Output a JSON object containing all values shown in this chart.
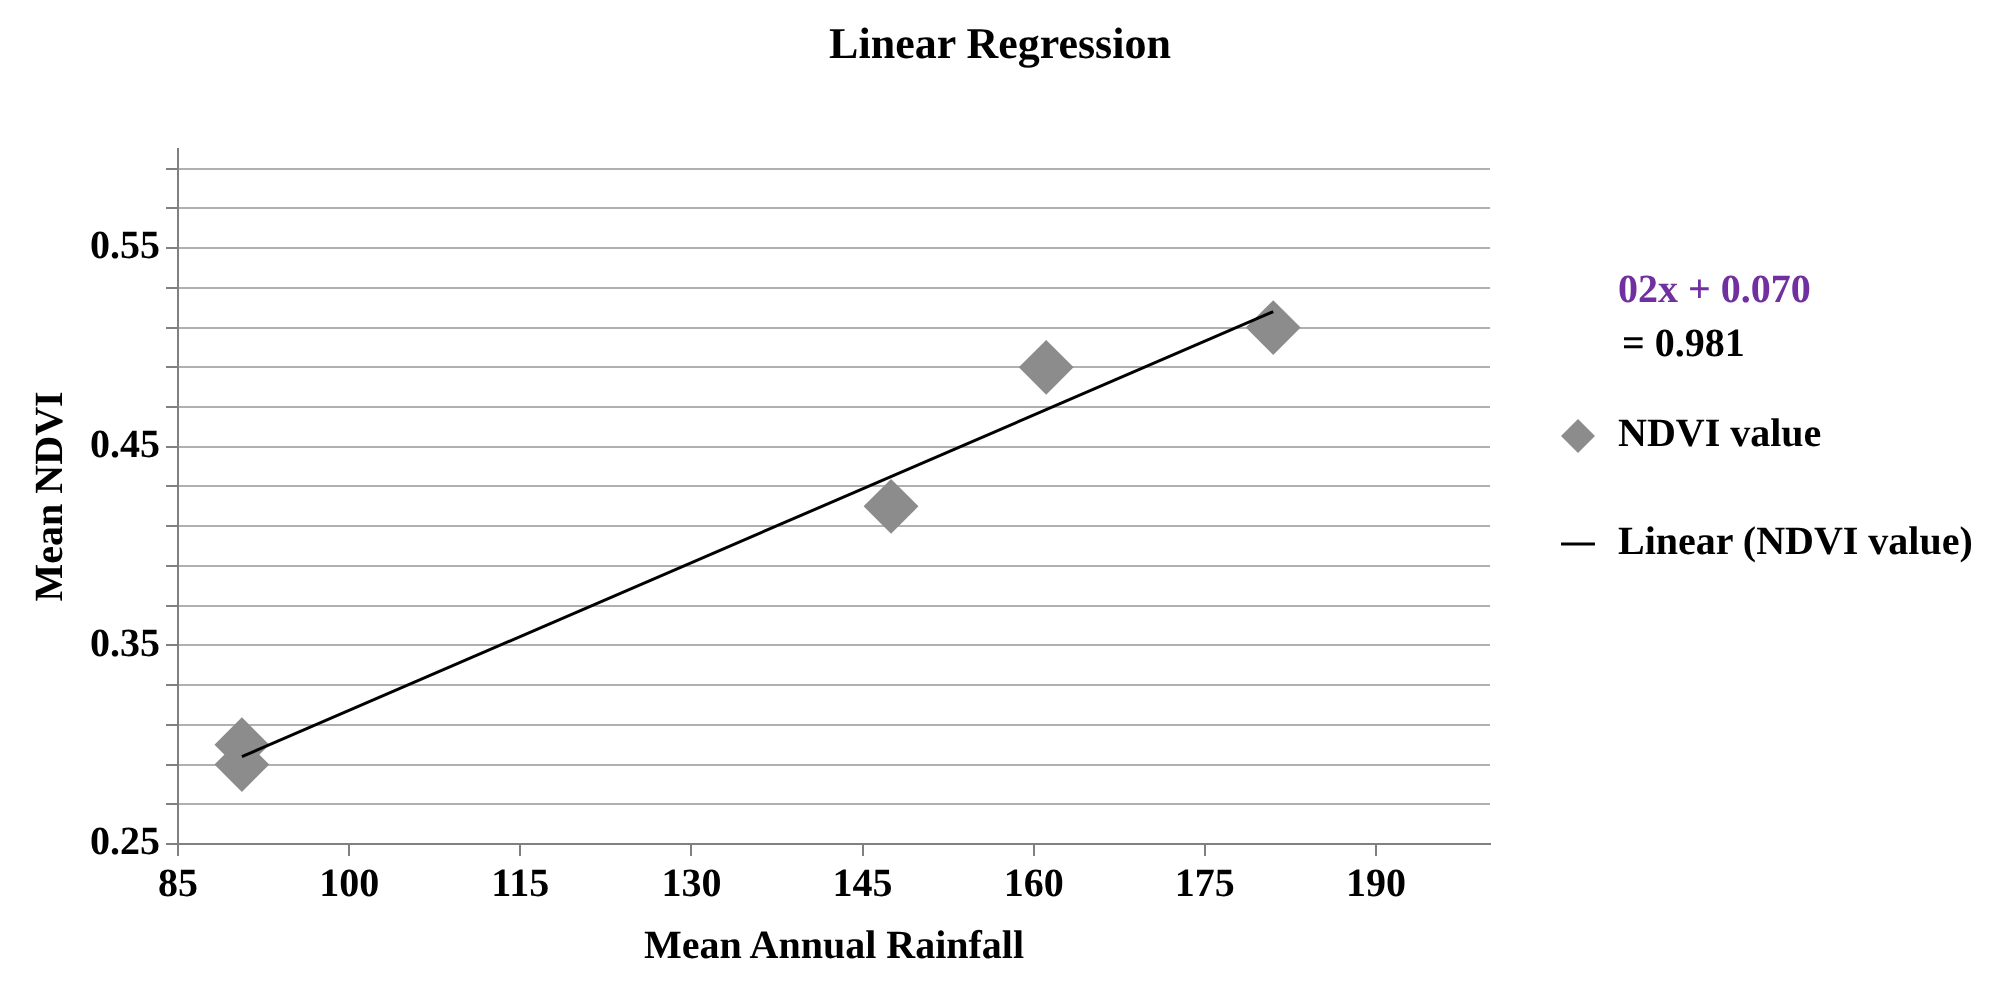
{
  "chart_data": {
    "type": "scatter",
    "title": "Linear Regression",
    "xlabel": "Mean Annual Rainfall",
    "ylabel": "Mean NDVI",
    "series": [
      {
        "name": "NDVI value",
        "color": "#8c8c8c",
        "x": [
          90.6,
          90.6,
          147.5,
          161.1,
          181
        ],
        "values": [
          0.3,
          0.29,
          0.42,
          0.49,
          0.51
        ]
      },
      {
        "name": "Linear (NDVI value)",
        "type": "line",
        "color": "#000000",
        "marker": "none",
        "x": [
          90.6,
          181
        ],
        "values": [
          0.294,
          0.518
        ]
      }
    ],
    "xlim": [
      85,
      200
    ],
    "xticks": [
      85,
      100,
      115,
      130,
      145,
      160,
      175,
      190
    ],
    "ylim": [
      0.25,
      0.6
    ],
    "yticks": [
      {
        "value": 0.25,
        "label": "0.25"
      },
      {
        "value": 0.27,
        "label": null
      },
      {
        "value": 0.29,
        "label": null
      },
      {
        "value": 0.31,
        "label": null
      },
      {
        "value": 0.33,
        "label": null
      },
      {
        "value": 0.35,
        "label": "0.35"
      },
      {
        "value": 0.37,
        "label": null
      },
      {
        "value": 0.39,
        "label": null
      },
      {
        "value": 0.41,
        "label": null
      },
      {
        "value": 0.43,
        "label": null
      },
      {
        "value": 0.45,
        "label": "0.45"
      },
      {
        "value": 0.47,
        "label": null
      },
      {
        "value": 0.49,
        "label": null
      },
      {
        "value": 0.51,
        "label": null
      },
      {
        "value": 0.53,
        "label": null
      },
      {
        "value": 0.55,
        "label": "0.55"
      },
      {
        "value": 0.57,
        "label": null
      },
      {
        "value": 0.59,
        "label": null
      }
    ],
    "grid": "y",
    "legend": "right",
    "marker": "diamond",
    "annotations": [
      "02x + 0.070",
      "= 0.981"
    ]
  }
}
